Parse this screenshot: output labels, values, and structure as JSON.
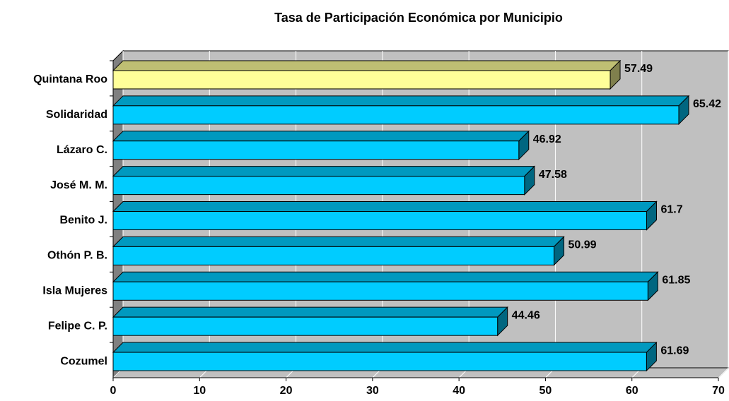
{
  "chart_data": {
    "type": "bar3d_horizontal",
    "title": "Tasa de Participación Económica por Municipio",
    "categories": [
      "Quintana Roo",
      "Solidaridad",
      "Lázaro C.",
      "José M. M.",
      "Benito J.",
      "Othón P. B.",
      "Isla Mujeres",
      "Felipe C. P.",
      "Cozumel"
    ],
    "values": [
      57.49,
      65.42,
      46.92,
      47.58,
      61.7,
      50.99,
      61.85,
      44.46,
      61.69
    ],
    "colors": [
      "#ffff99",
      "#00ccff",
      "#00ccff",
      "#00ccff",
      "#00ccff",
      "#00ccff",
      "#00ccff",
      "#00ccff",
      "#00ccff"
    ],
    "xlim": [
      0,
      70
    ],
    "xticks": [
      0,
      10,
      20,
      30,
      40,
      50,
      60,
      70
    ],
    "grid": true
  }
}
